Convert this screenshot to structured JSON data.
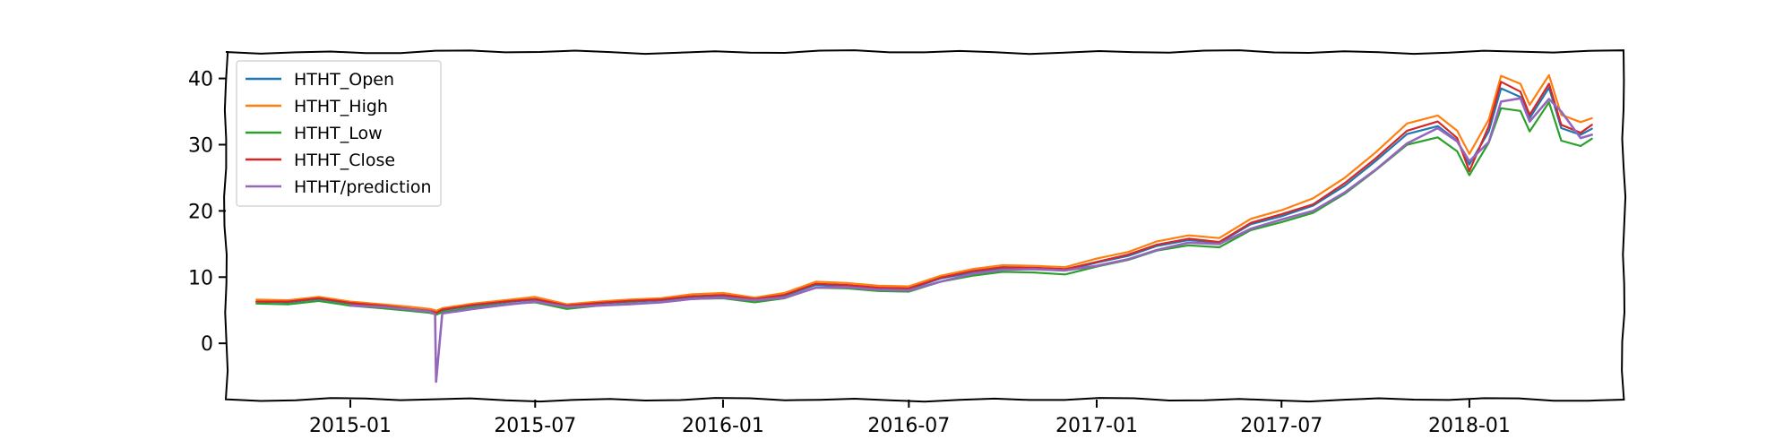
{
  "chart_data": {
    "type": "line",
    "title": "",
    "xlabel": "",
    "ylabel": "",
    "x_axis": {
      "type": "date",
      "range": [
        "2014-09-01",
        "2018-06-01"
      ],
      "ticks": [
        "2015-01-01",
        "2015-07-01",
        "2016-01-01",
        "2016-07-01",
        "2017-01-01",
        "2017-07-01",
        "2018-01-01"
      ],
      "tick_labels": [
        "2015-01",
        "2015-07",
        "2016-01",
        "2016-07",
        "2017-01",
        "2017-07",
        "2018-01"
      ]
    },
    "y_axis": {
      "range": [
        -8.5,
        44
      ],
      "ticks": [
        0,
        10,
        20,
        30,
        40
      ],
      "tick_labels": [
        "0",
        "10",
        "20",
        "30",
        "40"
      ]
    },
    "grid": false,
    "legend": {
      "placement": "top-left",
      "entries": [
        "HTHT_Open",
        "HTHT_High",
        "HTHT_Low",
        "HTHT_Close",
        "HTHT/prediction"
      ]
    },
    "x": [
      "2014-10-01",
      "2014-11-01",
      "2014-12-01",
      "2015-01-01",
      "2015-02-01",
      "2015-03-01",
      "2015-03-20",
      "2015-03-25",
      "2015-03-26",
      "2015-04-01",
      "2015-05-01",
      "2015-06-01",
      "2015-07-01",
      "2015-08-01",
      "2015-09-01",
      "2015-10-01",
      "2015-11-01",
      "2015-12-01",
      "2016-01-01",
      "2016-02-01",
      "2016-03-01",
      "2016-04-01",
      "2016-05-01",
      "2016-06-01",
      "2016-07-01",
      "2016-08-01",
      "2016-09-01",
      "2016-10-01",
      "2016-11-01",
      "2016-12-01",
      "2017-01-01",
      "2017-02-01",
      "2017-03-01",
      "2017-04-01",
      "2017-05-01",
      "2017-06-01",
      "2017-07-01",
      "2017-08-01",
      "2017-09-01",
      "2017-10-01",
      "2017-11-01",
      "2017-12-01",
      "2017-12-20",
      "2018-01-01",
      "2018-01-20",
      "2018-02-01",
      "2018-02-20",
      "2018-03-01",
      "2018-03-20",
      "2018-04-01",
      "2018-04-20",
      "2018-05-01"
    ],
    "series": [
      {
        "name": "HTHT_Open",
        "color": "#1f77b4",
        "values": [
          6.3,
          6.2,
          6.7,
          6.0,
          5.6,
          5.2,
          4.9,
          4.7,
          4.6,
          5.0,
          5.7,
          6.2,
          6.6,
          5.6,
          6.0,
          6.3,
          6.5,
          7.0,
          7.2,
          6.6,
          7.2,
          8.8,
          8.7,
          8.3,
          8.2,
          9.8,
          10.7,
          11.3,
          11.2,
          11.0,
          12.2,
          13.2,
          14.7,
          15.6,
          15.2,
          18.0,
          19.2,
          20.8,
          23.8,
          27.5,
          31.6,
          32.8,
          30.6,
          27.0,
          32.0,
          38.5,
          37.2,
          34.0,
          38.6,
          32.5,
          31.5,
          32.4
        ]
      },
      {
        "name": "HTHT_High",
        "color": "#ff7f0e",
        "values": [
          6.6,
          6.5,
          7.0,
          6.3,
          5.9,
          5.5,
          5.2,
          5.0,
          4.9,
          5.3,
          6.0,
          6.5,
          7.0,
          5.9,
          6.3,
          6.6,
          6.8,
          7.4,
          7.6,
          6.9,
          7.6,
          9.3,
          9.1,
          8.7,
          8.6,
          10.2,
          11.2,
          11.8,
          11.7,
          11.5,
          12.8,
          13.8,
          15.4,
          16.3,
          15.9,
          18.8,
          20.1,
          21.9,
          25.0,
          28.8,
          33.2,
          34.4,
          32.1,
          28.6,
          33.8,
          40.4,
          39.2,
          36.0,
          40.5,
          34.5,
          33.4,
          34.0
        ]
      },
      {
        "name": "HTHT_Low",
        "color": "#2ca02c",
        "values": [
          6.0,
          5.9,
          6.4,
          5.7,
          5.3,
          4.9,
          4.6,
          4.4,
          4.3,
          4.7,
          5.4,
          5.9,
          6.2,
          5.2,
          5.7,
          6.0,
          6.2,
          6.7,
          6.8,
          6.2,
          6.8,
          8.4,
          8.3,
          7.9,
          7.8,
          9.3,
          10.2,
          10.8,
          10.7,
          10.4,
          11.6,
          12.6,
          14.0,
          14.8,
          14.5,
          17.1,
          18.3,
          19.7,
          22.6,
          26.1,
          30.0,
          31.1,
          29.0,
          25.4,
          30.3,
          35.5,
          35.1,
          32.0,
          36.4,
          30.6,
          29.8,
          30.9
        ]
      },
      {
        "name": "HTHT_Close",
        "color": "#d62728",
        "values": [
          6.3,
          6.3,
          6.8,
          6.1,
          5.7,
          5.2,
          4.9,
          4.7,
          4.6,
          5.1,
          5.8,
          6.3,
          6.7,
          5.7,
          6.1,
          6.4,
          6.6,
          7.1,
          7.3,
          6.7,
          7.3,
          9.0,
          8.8,
          8.4,
          8.3,
          9.9,
          10.9,
          11.5,
          11.4,
          11.2,
          12.3,
          13.4,
          14.9,
          15.8,
          15.3,
          18.2,
          19.5,
          21.0,
          24.2,
          27.9,
          32.1,
          33.5,
          31.0,
          26.0,
          32.8,
          39.5,
          38.0,
          34.5,
          39.2,
          33.0,
          31.8,
          33.0
        ]
      },
      {
        "name": "HTHT/prediction",
        "color": "#9467bd",
        "values": [
          null,
          null,
          null,
          5.7,
          5.5,
          5.1,
          4.8,
          4.4,
          -5.8,
          4.5,
          5.2,
          5.8,
          6.3,
          5.5,
          5.7,
          5.9,
          6.2,
          6.7,
          6.9,
          6.5,
          6.9,
          8.4,
          8.5,
          8.1,
          8.0,
          9.3,
          10.5,
          11.1,
          11.2,
          11.0,
          11.7,
          12.7,
          14.1,
          15.2,
          15.0,
          17.3,
          18.7,
          20.0,
          22.8,
          26.2,
          30.2,
          32.5,
          30.5,
          27.5,
          30.4,
          36.5,
          37.0,
          33.5,
          36.9,
          35.0,
          31.0,
          31.5
        ]
      }
    ]
  }
}
